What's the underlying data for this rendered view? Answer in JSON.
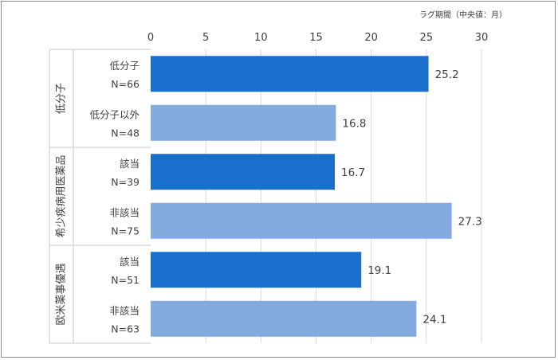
{
  "chart_data": {
    "type": "bar",
    "orientation": "horizontal",
    "unit_label": "ラグ期間（中央値：月）",
    "xlim": [
      0,
      30
    ],
    "xticks": [
      "0",
      "5",
      "10",
      "15",
      "20",
      "25",
      "30"
    ],
    "grid": true,
    "colors": {
      "dark": "#1a6fcd",
      "light": "#84abdf"
    },
    "groups": [
      {
        "name": "低分子",
        "bars": [
          {
            "label": "低分子",
            "n": "N=66",
            "value": 25.2,
            "value_label": "25.2",
            "shade": "dark"
          },
          {
            "label": "低分子以外",
            "n": "N=48",
            "value": 16.8,
            "value_label": "16.8",
            "shade": "light"
          }
        ]
      },
      {
        "name": "希少疾病用医薬品",
        "bars": [
          {
            "label": "該当",
            "n": "N=39",
            "value": 16.7,
            "value_label": "16.7",
            "shade": "dark"
          },
          {
            "label": "非該当",
            "n": "N=75",
            "value": 27.3,
            "value_label": "27.3",
            "shade": "light"
          }
        ]
      },
      {
        "name": "欧米薬事優遇",
        "bars": [
          {
            "label": "該当",
            "n": "N=51",
            "value": 19.1,
            "value_label": "19.1",
            "shade": "dark"
          },
          {
            "label": "非該当",
            "n": "N=63",
            "value": 24.1,
            "value_label": "24.1",
            "shade": "light"
          }
        ]
      }
    ]
  }
}
